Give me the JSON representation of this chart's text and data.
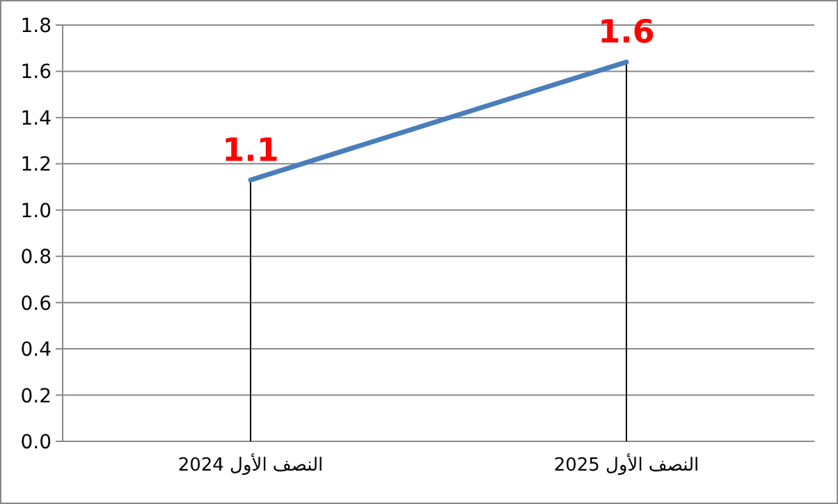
{
  "chart_data": {
    "type": "line",
    "categories": [
      "النصف الأول 2024",
      "النصف الأول 2025"
    ],
    "series": [
      {
        "color": "#4a7ebb",
        "values": [
          1.13,
          1.64
        ],
        "errors": [
          [
            0,
            1.13
          ],
          [
            0,
            1.64
          ]
        ],
        "value_labels": [
          "1.1",
          "1.6"
        ]
      }
    ],
    "ylim": [
      0,
      1.8
    ],
    "yticks": [
      {
        "value": 0,
        "label": "0.0"
      },
      {
        "value": 0.2,
        "label": "0.2"
      },
      {
        "value": 0.4,
        "label": "0.4"
      },
      {
        "value": 0.6,
        "label": "0.6"
      },
      {
        "value": 0.8,
        "label": "0.8"
      },
      {
        "value": 1.0,
        "label": "1.0"
      },
      {
        "value": 1.2,
        "label": "1.2"
      },
      {
        "value": 1.4,
        "label": "1.4"
      },
      {
        "value": 1.6,
        "label": "1.6"
      },
      {
        "value": 1.8,
        "label": "1.8"
      }
    ],
    "grid": "y",
    "marker": "none",
    "line_style": "solid"
  }
}
